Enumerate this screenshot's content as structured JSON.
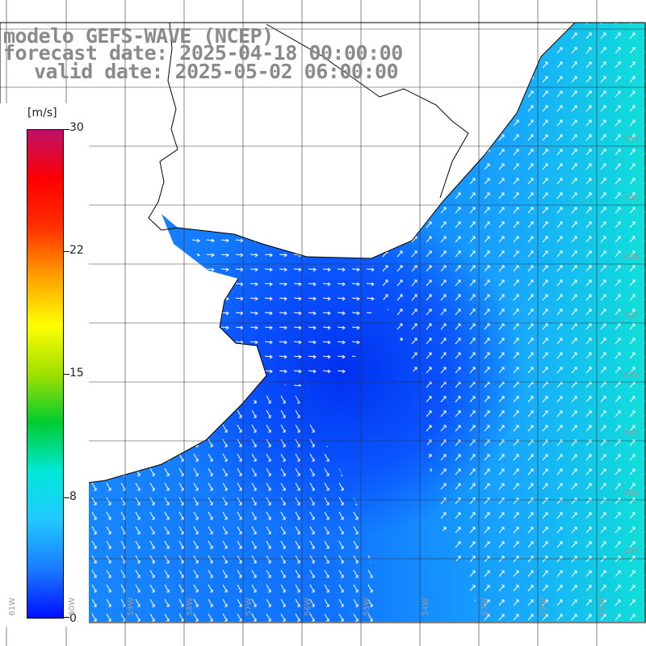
{
  "title": {
    "line1": "modelo GEFS-WAVE (NCEP)",
    "line2": "forecast date: 2025-04-18 00:00:00",
    "line3": "valid date: 2025-05-02 06:00:00"
  },
  "colorbar": {
    "unit": "[m/s]",
    "ticks": [
      "30",
      "22",
      "15",
      "8",
      "0"
    ],
    "stops": [
      "#0010ff",
      "#1a7cff",
      "#22c8ff",
      "#00e8d8",
      "#00cc30",
      "#a0e000",
      "#ffff00",
      "#ffa000",
      "#ff3000",
      "#ff0000",
      "#c0106a"
    ]
  },
  "lat_labels": [
    "33S",
    "34S",
    "35S",
    "36S",
    "37S",
    "38S",
    "39S",
    "40S"
  ],
  "lon_labels": [
    "61W",
    "60W",
    "59W",
    "58W",
    "57W",
    "56W",
    "55W",
    "54W",
    "53W",
    "52W",
    "51W"
  ],
  "colors": {
    "land": "#ffffff",
    "grid": "#000000",
    "coast": "#000000"
  }
}
